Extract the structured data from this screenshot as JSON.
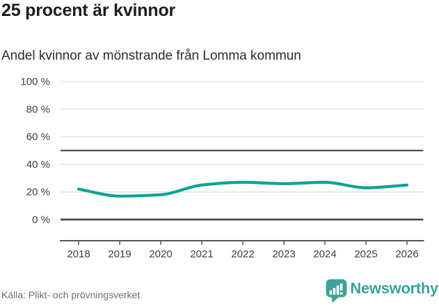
{
  "header": {
    "title": "25 procent är kvinnor",
    "subtitle": "Andel kvinnor av mönstrande från Lomma kommun"
  },
  "chart_data": {
    "type": "line",
    "title": "25 procent är kvinnor",
    "subtitle": "Andel kvinnor av mönstrande från Lomma kommun",
    "x": [
      "2018",
      "2019",
      "2020",
      "2021",
      "2022",
      "2023",
      "2024",
      "2025",
      "2026"
    ],
    "series": [
      {
        "name": "Andel kvinnor av mönstrande",
        "values": [
          22,
          17,
          18,
          25,
          27,
          26,
          27,
          23,
          25
        ]
      }
    ],
    "unit": "%",
    "ylim": [
      0,
      100
    ],
    "yticks": [
      {
        "value": 0,
        "label": "0 %"
      },
      {
        "value": 20,
        "label": "20 %"
      },
      {
        "value": 40,
        "label": "40 %"
      },
      {
        "value": 60,
        "label": "60 %"
      },
      {
        "value": 80,
        "label": "80 %"
      },
      {
        "value": 100,
        "label": "100 %"
      }
    ],
    "reference_line": 50,
    "grid": "horizontal",
    "legend": "none",
    "line_color": "#0aa396"
  },
  "footer": {
    "source": "Källa: Plikt- och prövningsverket",
    "brand": "Newsworthy"
  },
  "colors": {
    "line": "#0aa396",
    "brand_teal": "#3fa29a",
    "title_text": "#1d1d1b",
    "subtitle_text": "#2b2b2b",
    "axis_text": "#3d3d3d",
    "source_text": "#6e6e6e",
    "gridline": "#e4e4e4",
    "reference_line": "#4f4f4f",
    "zero_line": "#3b3b3b",
    "axis_line": "#555555",
    "background": "#ffffff"
  }
}
